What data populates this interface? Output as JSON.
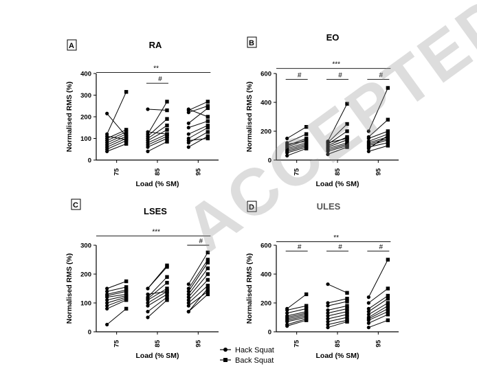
{
  "watermark": "ACCEPTED",
  "legend": {
    "hack": "Hack Squat",
    "back": "Back Squat"
  },
  "chart_data": [
    {
      "panel": "A",
      "title": "RA",
      "type": "line",
      "xlabel": "Load (% SM)",
      "ylabel": "Normalised RMS (%)",
      "ylim": [
        0,
        400
      ],
      "yticks": [
        0,
        100,
        200,
        300,
        400
      ],
      "categories": [
        "75",
        "85",
        "95"
      ],
      "pairs": [
        [
          [
            215,
            110
          ],
          [
            235,
            230
          ],
          [
            235,
            200
          ]
        ],
        [
          [
            120,
            315
          ],
          [
            120,
            270
          ],
          [
            230,
            270
          ]
        ],
        [
          [
            100,
            140
          ],
          [
            110,
            190
          ],
          [
            220,
            250
          ]
        ],
        [
          [
            90,
            130
          ],
          [
            100,
            160
          ],
          [
            170,
            240
          ]
        ],
        [
          [
            80,
            120
          ],
          [
            90,
            140
          ],
          [
            150,
            180
          ]
        ],
        [
          [
            70,
            110
          ],
          [
            80,
            120
          ],
          [
            120,
            160
          ]
        ],
        [
          [
            60,
            100
          ],
          [
            70,
            110
          ],
          [
            100,
            150
          ]
        ],
        [
          [
            50,
            90
          ],
          [
            60,
            100
          ],
          [
            80,
            130
          ]
        ],
        [
          [
            40,
            75
          ],
          [
            40,
            85
          ],
          [
            60,
            110
          ]
        ],
        [
          [
            110,
            95
          ],
          [
            130,
            120
          ],
          [
            90,
            100
          ]
        ]
      ],
      "brackets": [
        {
          "from": 0,
          "to": 2,
          "label": "**",
          "y": 405
        },
        {
          "from": 1,
          "to": 1,
          "label": "#",
          "y": 355
        }
      ]
    },
    {
      "panel": "B",
      "title": "EO",
      "type": "line",
      "xlabel": "Load (% SM)",
      "ylabel": "Normalised RMS (%)",
      "ylim": [
        0,
        600
      ],
      "yticks": [
        0,
        200,
        400,
        600
      ],
      "categories": [
        "75",
        "85",
        "95"
      ],
      "pairs": [
        [
          [
            150,
            230
          ],
          [
            130,
            390
          ],
          [
            200,
            500
          ]
        ],
        [
          [
            120,
            180
          ],
          [
            120,
            250
          ],
          [
            160,
            280
          ]
        ],
        [
          [
            100,
            150
          ],
          [
            110,
            200
          ],
          [
            150,
            200
          ]
        ],
        [
          [
            90,
            140
          ],
          [
            100,
            160
          ],
          [
            130,
            180
          ]
        ],
        [
          [
            80,
            120
          ],
          [
            90,
            140
          ],
          [
            120,
            160
          ]
        ],
        [
          [
            70,
            110
          ],
          [
            80,
            120
          ],
          [
            110,
            150
          ]
        ],
        [
          [
            60,
            100
          ],
          [
            70,
            110
          ],
          [
            100,
            140
          ]
        ],
        [
          [
            50,
            90
          ],
          [
            60,
            100
          ],
          [
            90,
            120
          ]
        ],
        [
          [
            30,
            80
          ],
          [
            40,
            90
          ],
          [
            60,
            100
          ]
        ],
        [
          [
            110,
            130
          ],
          [
            120,
            150
          ],
          [
            80,
            170
          ]
        ]
      ],
      "brackets": [
        {
          "from": 0,
          "to": 2,
          "label": "***",
          "y": 635
        },
        {
          "from": 0,
          "to": 0,
          "label": "#",
          "y": 560
        },
        {
          "from": 1,
          "to": 1,
          "label": "#",
          "y": 560
        },
        {
          "from": 2,
          "to": 2,
          "label": "#",
          "y": 560
        }
      ]
    },
    {
      "panel": "C",
      "title": "LSES",
      "type": "line",
      "xlabel": "Load (% SM)",
      "ylabel": "Normalised RMS (%)",
      "ylim": [
        0,
        300
      ],
      "yticks": [
        0,
        100,
        200,
        300
      ],
      "categories": [
        "75",
        "85",
        "95"
      ],
      "pairs": [
        [
          [
            150,
            175
          ],
          [
            150,
            230
          ],
          [
            165,
            275
          ]
        ],
        [
          [
            140,
            155
          ],
          [
            150,
            225
          ],
          [
            150,
            250
          ]
        ],
        [
          [
            130,
            145
          ],
          [
            120,
            190
          ],
          [
            140,
            240
          ]
        ],
        [
          [
            125,
            140
          ],
          [
            115,
            170
          ],
          [
            130,
            220
          ]
        ],
        [
          [
            120,
            130
          ],
          [
            110,
            150
          ],
          [
            120,
            200
          ]
        ],
        [
          [
            110,
            125
          ],
          [
            100,
            140
          ],
          [
            110,
            180
          ]
        ],
        [
          [
            100,
            120
          ],
          [
            90,
            130
          ],
          [
            100,
            160
          ]
        ],
        [
          [
            90,
            115
          ],
          [
            70,
            120
          ],
          [
            90,
            140
          ]
        ],
        [
          [
            80,
            110
          ],
          [
            50,
            110
          ],
          [
            70,
            130
          ]
        ],
        [
          [
            25,
            80
          ],
          [
            130,
            140
          ],
          [
            70,
            150
          ]
        ]
      ],
      "brackets": [
        {
          "from": 0,
          "to": 2,
          "label": "***",
          "y": 332
        },
        {
          "from": 2,
          "to": 2,
          "label": "#",
          "y": 300
        }
      ]
    },
    {
      "panel": "D",
      "title": "ULES",
      "type": "line",
      "xlabel": "Load (% SM)",
      "ylabel": "Normalised RMS (%)",
      "ylim": [
        0,
        600
      ],
      "yticks": [
        0,
        200,
        400,
        600
      ],
      "categories": [
        "75",
        "85",
        "95"
      ],
      "pairs": [
        [
          [
            160,
            260
          ],
          [
            330,
            270
          ],
          [
            240,
            500
          ]
        ],
        [
          [
            150,
            180
          ],
          [
            200,
            230
          ],
          [
            200,
            300
          ]
        ],
        [
          [
            130,
            160
          ],
          [
            180,
            210
          ],
          [
            160,
            250
          ]
        ],
        [
          [
            110,
            140
          ],
          [
            150,
            180
          ],
          [
            140,
            230
          ]
        ],
        [
          [
            100,
            130
          ],
          [
            130,
            160
          ],
          [
            120,
            200
          ]
        ],
        [
          [
            90,
            120
          ],
          [
            110,
            140
          ],
          [
            100,
            180
          ]
        ],
        [
          [
            80,
            110
          ],
          [
            90,
            120
          ],
          [
            90,
            160
          ]
        ],
        [
          [
            70,
            100
          ],
          [
            70,
            100
          ],
          [
            80,
            140
          ]
        ],
        [
          [
            50,
            90
          ],
          [
            50,
            80
          ],
          [
            60,
            120
          ]
        ],
        [
          [
            40,
            80
          ],
          [
            30,
            70
          ],
          [
            30,
            80
          ]
        ]
      ],
      "brackets": [
        {
          "from": 0,
          "to": 2,
          "label": "**",
          "y": 625
        },
        {
          "from": 0,
          "to": 0,
          "label": "#",
          "y": 560
        },
        {
          "from": 1,
          "to": 1,
          "label": "#",
          "y": 560
        },
        {
          "from": 2,
          "to": 2,
          "label": "#",
          "y": 560
        }
      ]
    }
  ]
}
